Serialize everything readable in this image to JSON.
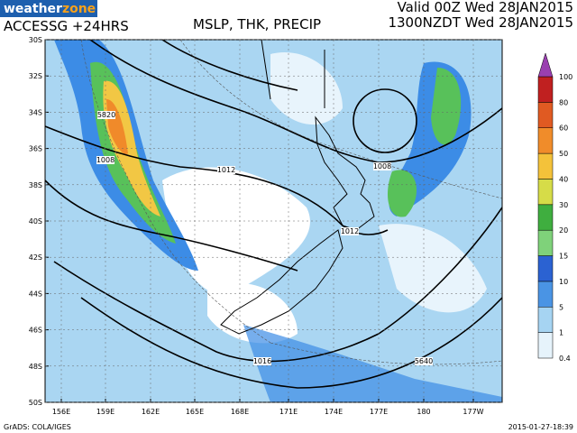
{
  "header": {
    "logo_a": "weather",
    "logo_b": "zone",
    "model": "ACCESSG +24HRS",
    "title": "MSLP, THK, PRECIP",
    "valid": "Valid 00Z Wed 28JAN2015",
    "local_time": "1300NZDT Wed 28JAN2015"
  },
  "lat_labels": [
    "30S",
    "32S",
    "34S",
    "36S",
    "38S",
    "40S",
    "42S",
    "44S",
    "46S",
    "48S",
    "50S"
  ],
  "lon_labels": [
    "156E",
    "159E",
    "162E",
    "165E",
    "168E",
    "171E",
    "174E",
    "177E",
    "180",
    "177W"
  ],
  "colorbar": {
    "labels": [
      0.4,
      1,
      5,
      10,
      15,
      20,
      30,
      40,
      50,
      60,
      80,
      100
    ]
  },
  "contour_labels": [
    "5820",
    "1008",
    "1012",
    "1008",
    "1012",
    "1016",
    "5640"
  ],
  "footer": {
    "source": "GrADS: COLA/IGES",
    "timestamp": "2015-01-27-18:39"
  }
}
